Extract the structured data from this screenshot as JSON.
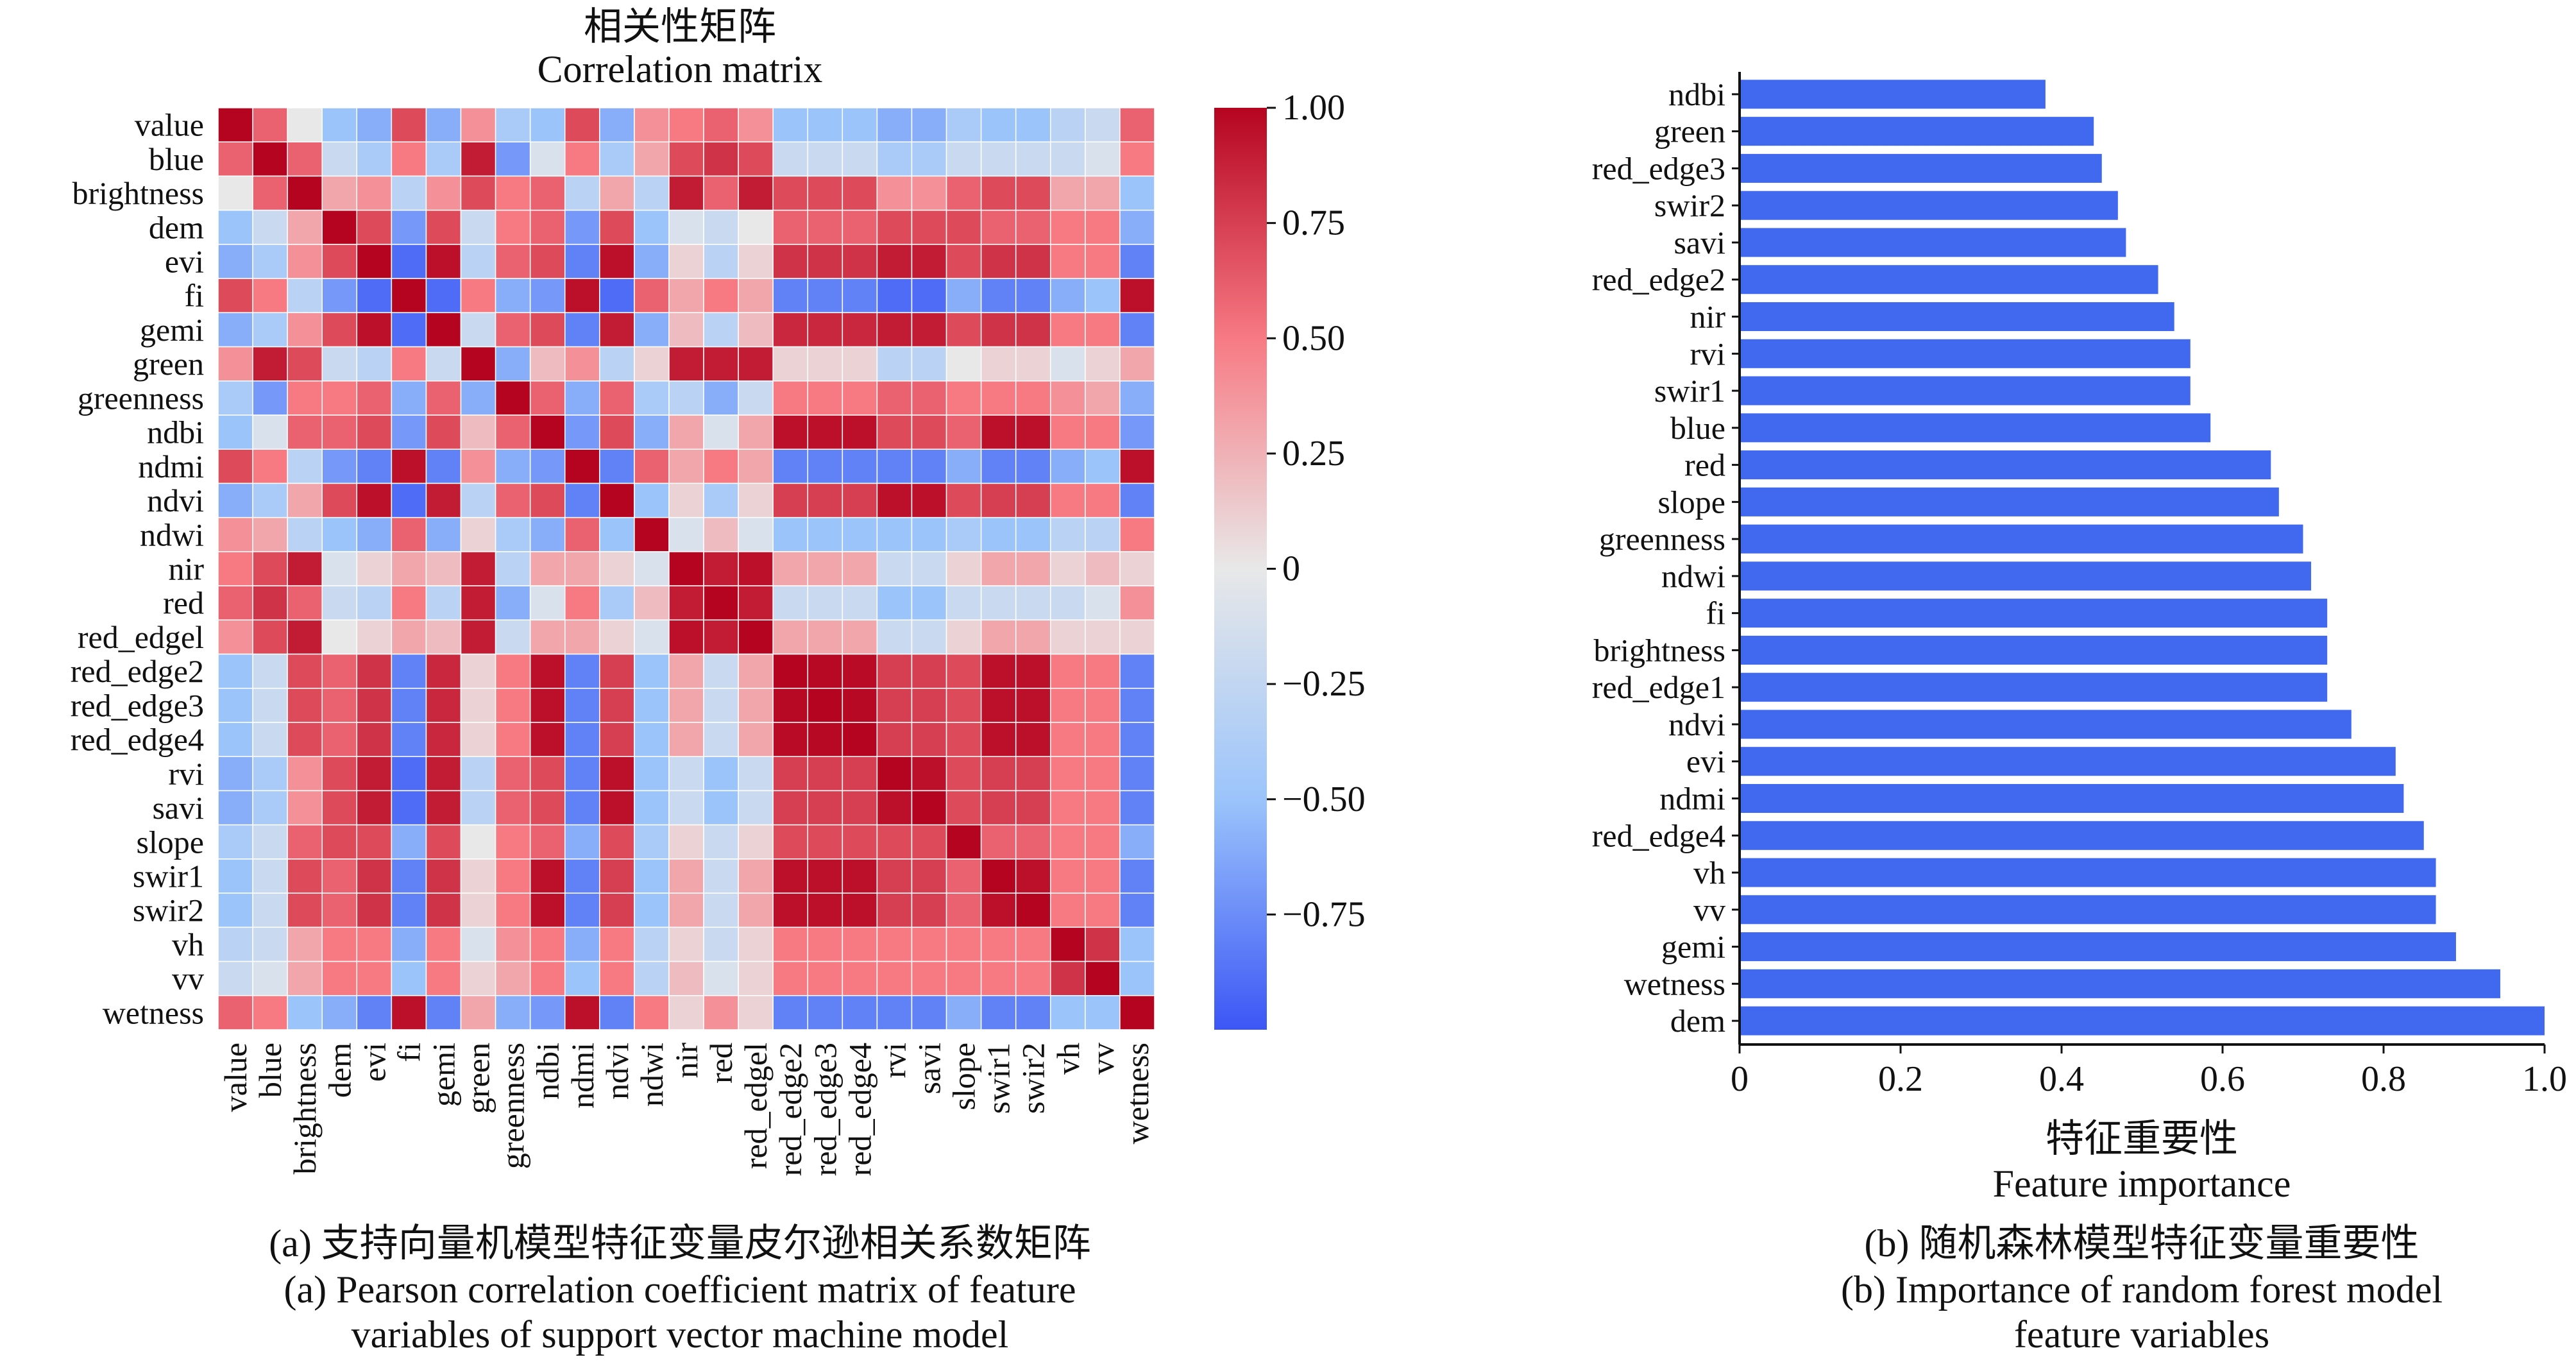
{
  "heatmap": {
    "title_zh": "相关性矩阵",
    "title_en": "Correlation matrix",
    "caption_zh": "(a) 支持向量机模型特征变量皮尔逊相关系数矩阵",
    "caption_en_1": "(a) Pearson correlation coefficient matrix of feature",
    "caption_en_2": "variables of support vector machine model",
    "colorbar": {
      "range": [
        -1,
        1
      ],
      "ticks": [
        1.0,
        0.75,
        0.5,
        0.25,
        0,
        -0.25,
        -0.5,
        -0.75
      ],
      "tick_labels": [
        "1.00",
        "0.75",
        "0.50",
        "0.25",
        "0",
        "−0.25",
        "−0.50",
        "−0.75"
      ],
      "colors": [
        "#3b56f5",
        "#9bc4fb",
        "#e8e8e8",
        "#f77a83",
        "#b50420"
      ]
    }
  },
  "chart_data": [
    {
      "type": "heatmap",
      "title": "相关性矩阵 Correlation matrix",
      "labels": [
        "value",
        "blue",
        "brightness",
        "dem",
        "evi",
        "fi",
        "gemi",
        "green",
        "greenness",
        "ndbi",
        "ndmi",
        "ndvi",
        "ndwi",
        "nir",
        "red",
        "red_edgel",
        "red_edge2",
        "red_edge3",
        "red_edge4",
        "rvi",
        "savi",
        "slope",
        "swir1",
        "swir2",
        "vh",
        "vv",
        "wetness"
      ],
      "vmin": -1,
      "vmax": 1,
      "values": [
        [
          1.0,
          0.6,
          0.0,
          -0.5,
          -0.6,
          0.7,
          -0.6,
          0.4,
          -0.4,
          -0.5,
          0.7,
          -0.6,
          0.4,
          0.5,
          0.6,
          0.4,
          -0.5,
          -0.5,
          -0.5,
          -0.6,
          -0.6,
          -0.4,
          -0.5,
          -0.5,
          -0.3,
          -0.2,
          0.6
        ],
        [
          0.6,
          1.0,
          0.6,
          -0.2,
          -0.4,
          0.5,
          -0.4,
          0.9,
          -0.7,
          -0.1,
          0.5,
          -0.4,
          0.3,
          0.7,
          0.8,
          0.7,
          -0.2,
          -0.2,
          -0.2,
          -0.4,
          -0.4,
          -0.2,
          -0.2,
          -0.2,
          -0.2,
          -0.1,
          0.5
        ],
        [
          0.0,
          0.6,
          1.0,
          0.3,
          0.4,
          -0.3,
          0.4,
          0.7,
          0.5,
          0.6,
          -0.3,
          0.3,
          -0.3,
          0.9,
          0.6,
          0.9,
          0.7,
          0.7,
          0.7,
          0.4,
          0.4,
          0.6,
          0.7,
          0.7,
          0.3,
          0.3,
          -0.5
        ],
        [
          -0.5,
          -0.2,
          0.3,
          1.0,
          0.7,
          -0.7,
          0.7,
          -0.2,
          0.5,
          0.6,
          -0.7,
          0.7,
          -0.5,
          -0.1,
          -0.2,
          0.0,
          0.6,
          0.6,
          0.6,
          0.7,
          0.7,
          0.7,
          0.6,
          0.6,
          0.5,
          0.5,
          -0.6
        ],
        [
          -0.6,
          -0.4,
          0.4,
          0.7,
          1.0,
          -0.9,
          0.95,
          -0.3,
          0.6,
          0.7,
          -0.8,
          0.95,
          -0.6,
          0.1,
          -0.3,
          0.1,
          0.8,
          0.8,
          0.8,
          0.9,
          0.9,
          0.7,
          0.8,
          0.8,
          0.5,
          0.5,
          -0.8
        ],
        [
          0.7,
          0.5,
          -0.3,
          -0.7,
          -0.9,
          1.0,
          -0.9,
          0.5,
          -0.6,
          -0.7,
          0.95,
          -0.9,
          0.6,
          0.3,
          0.5,
          0.3,
          -0.8,
          -0.8,
          -0.8,
          -0.9,
          -0.9,
          -0.6,
          -0.8,
          -0.8,
          -0.6,
          -0.5,
          0.95
        ],
        [
          -0.6,
          -0.4,
          0.4,
          0.7,
          0.95,
          -0.9,
          1.0,
          -0.2,
          0.6,
          0.7,
          -0.8,
          0.9,
          -0.6,
          0.2,
          -0.3,
          0.2,
          0.85,
          0.85,
          0.85,
          0.9,
          0.9,
          0.7,
          0.8,
          0.8,
          0.5,
          0.5,
          -0.8
        ],
        [
          0.4,
          0.9,
          0.7,
          -0.2,
          -0.3,
          0.5,
          -0.2,
          1.0,
          -0.6,
          0.2,
          0.4,
          -0.3,
          0.1,
          0.9,
          0.9,
          0.9,
          0.1,
          0.1,
          0.1,
          -0.3,
          -0.3,
          0.0,
          0.1,
          0.1,
          -0.1,
          0.1,
          0.3
        ],
        [
          -0.4,
          -0.7,
          0.5,
          0.5,
          0.6,
          -0.6,
          0.6,
          -0.6,
          1.0,
          0.6,
          -0.6,
          0.6,
          -0.4,
          -0.3,
          -0.6,
          -0.2,
          0.5,
          0.5,
          0.5,
          0.6,
          0.6,
          0.5,
          0.5,
          0.5,
          0.4,
          0.3,
          -0.6
        ],
        [
          -0.5,
          -0.1,
          0.6,
          0.6,
          0.7,
          -0.7,
          0.7,
          0.2,
          0.6,
          1.0,
          -0.7,
          0.7,
          -0.6,
          0.3,
          -0.1,
          0.3,
          0.95,
          0.95,
          0.95,
          0.7,
          0.7,
          0.6,
          0.95,
          0.95,
          0.5,
          0.5,
          -0.7
        ],
        [
          0.7,
          0.5,
          -0.3,
          -0.7,
          -0.8,
          0.95,
          -0.8,
          0.4,
          -0.6,
          -0.7,
          1.0,
          -0.8,
          0.6,
          0.3,
          0.5,
          0.3,
          -0.8,
          -0.8,
          -0.8,
          -0.8,
          -0.8,
          -0.6,
          -0.8,
          -0.8,
          -0.6,
          -0.5,
          0.95
        ],
        [
          -0.6,
          -0.4,
          0.3,
          0.7,
          0.95,
          -0.9,
          0.9,
          -0.3,
          0.6,
          0.7,
          -0.8,
          1.0,
          -0.5,
          0.1,
          -0.4,
          0.1,
          0.75,
          0.75,
          0.75,
          0.95,
          0.95,
          0.7,
          0.75,
          0.75,
          0.5,
          0.5,
          -0.8
        ],
        [
          0.4,
          0.3,
          -0.3,
          -0.5,
          -0.6,
          0.6,
          -0.6,
          0.1,
          -0.4,
          -0.6,
          0.6,
          -0.5,
          1.0,
          -0.1,
          0.2,
          -0.1,
          -0.5,
          -0.5,
          -0.5,
          -0.5,
          -0.5,
          -0.4,
          -0.5,
          -0.5,
          -0.3,
          -0.3,
          0.5
        ],
        [
          0.5,
          0.7,
          0.9,
          -0.1,
          0.1,
          0.3,
          0.2,
          0.9,
          -0.3,
          0.3,
          0.3,
          0.1,
          -0.1,
          1.0,
          0.9,
          0.95,
          0.3,
          0.3,
          0.3,
          -0.2,
          -0.2,
          0.1,
          0.3,
          0.3,
          0.1,
          0.2,
          0.1
        ],
        [
          0.6,
          0.8,
          0.6,
          -0.2,
          -0.3,
          0.5,
          -0.3,
          0.9,
          -0.6,
          -0.1,
          0.5,
          -0.4,
          0.2,
          0.9,
          1.0,
          0.9,
          -0.2,
          -0.2,
          -0.2,
          -0.5,
          -0.5,
          -0.2,
          -0.2,
          -0.2,
          -0.2,
          -0.1,
          0.4
        ],
        [
          0.4,
          0.7,
          0.9,
          0.0,
          0.1,
          0.3,
          0.2,
          0.9,
          -0.2,
          0.3,
          0.3,
          0.1,
          -0.1,
          0.95,
          0.9,
          1.0,
          0.3,
          0.3,
          0.3,
          -0.2,
          -0.2,
          0.1,
          0.3,
          0.3,
          0.1,
          0.1,
          0.1
        ],
        [
          -0.5,
          -0.2,
          0.7,
          0.6,
          0.8,
          -0.8,
          0.85,
          0.1,
          0.5,
          0.95,
          -0.8,
          0.75,
          -0.5,
          0.3,
          -0.2,
          0.3,
          1.0,
          0.98,
          0.97,
          0.75,
          0.75,
          0.7,
          0.95,
          0.95,
          0.5,
          0.5,
          -0.8
        ],
        [
          -0.5,
          -0.2,
          0.7,
          0.6,
          0.8,
          -0.8,
          0.85,
          0.1,
          0.5,
          0.95,
          -0.8,
          0.75,
          -0.5,
          0.3,
          -0.2,
          0.3,
          0.98,
          1.0,
          0.98,
          0.75,
          0.75,
          0.7,
          0.95,
          0.95,
          0.5,
          0.5,
          -0.8
        ],
        [
          -0.5,
          -0.2,
          0.7,
          0.6,
          0.8,
          -0.8,
          0.85,
          0.1,
          0.5,
          0.95,
          -0.8,
          0.75,
          -0.5,
          0.3,
          -0.2,
          0.3,
          0.97,
          0.98,
          1.0,
          0.75,
          0.75,
          0.7,
          0.95,
          0.95,
          0.5,
          0.5,
          -0.8
        ],
        [
          -0.6,
          -0.4,
          0.4,
          0.7,
          0.9,
          -0.9,
          0.9,
          -0.3,
          0.6,
          0.7,
          -0.8,
          0.95,
          -0.5,
          -0.2,
          -0.5,
          -0.2,
          0.75,
          0.75,
          0.75,
          1.0,
          0.95,
          0.7,
          0.75,
          0.75,
          0.5,
          0.5,
          -0.8
        ],
        [
          -0.6,
          -0.4,
          0.4,
          0.7,
          0.9,
          -0.9,
          0.9,
          -0.3,
          0.6,
          0.7,
          -0.8,
          0.95,
          -0.5,
          -0.2,
          -0.5,
          -0.2,
          0.75,
          0.75,
          0.75,
          0.95,
          1.0,
          0.7,
          0.75,
          0.75,
          0.5,
          0.5,
          -0.8
        ],
        [
          -0.4,
          -0.2,
          0.6,
          0.7,
          0.7,
          -0.6,
          0.7,
          0.0,
          0.5,
          0.6,
          -0.6,
          0.7,
          -0.4,
          0.1,
          -0.2,
          0.1,
          0.7,
          0.7,
          0.7,
          0.7,
          0.7,
          1.0,
          0.6,
          0.6,
          0.5,
          0.5,
          -0.6
        ],
        [
          -0.5,
          -0.2,
          0.7,
          0.6,
          0.8,
          -0.8,
          0.8,
          0.1,
          0.5,
          0.95,
          -0.8,
          0.75,
          -0.5,
          0.3,
          -0.2,
          0.3,
          0.95,
          0.95,
          0.95,
          0.75,
          0.75,
          0.6,
          1.0,
          0.95,
          0.5,
          0.5,
          -0.8
        ],
        [
          -0.5,
          -0.2,
          0.7,
          0.6,
          0.8,
          -0.8,
          0.8,
          0.1,
          0.5,
          0.95,
          -0.8,
          0.75,
          -0.5,
          0.3,
          -0.2,
          0.3,
          0.95,
          0.95,
          0.95,
          0.75,
          0.75,
          0.6,
          0.95,
          1.0,
          0.5,
          0.5,
          -0.8
        ],
        [
          -0.3,
          -0.2,
          0.3,
          0.5,
          0.5,
          -0.6,
          0.5,
          -0.1,
          0.4,
          0.5,
          -0.6,
          0.5,
          -0.3,
          0.1,
          -0.2,
          0.1,
          0.5,
          0.5,
          0.5,
          0.5,
          0.5,
          0.5,
          0.5,
          0.5,
          1.0,
          0.8,
          -0.5
        ],
        [
          -0.2,
          -0.1,
          0.3,
          0.5,
          0.5,
          -0.5,
          0.5,
          0.1,
          0.3,
          0.5,
          -0.5,
          0.5,
          -0.3,
          0.2,
          -0.1,
          0.1,
          0.5,
          0.5,
          0.5,
          0.5,
          0.5,
          0.5,
          0.5,
          0.5,
          0.8,
          1.0,
          -0.5
        ],
        [
          0.6,
          0.5,
          -0.5,
          -0.6,
          -0.8,
          0.95,
          -0.8,
          0.3,
          -0.6,
          -0.7,
          0.95,
          -0.8,
          0.5,
          0.1,
          0.4,
          0.1,
          -0.8,
          -0.8,
          -0.8,
          -0.8,
          -0.8,
          -0.6,
          -0.8,
          -0.8,
          -0.5,
          -0.5,
          1.0
        ]
      ]
    },
    {
      "type": "bar",
      "orientation": "horizontal",
      "categories": [
        "ndbi",
        "green",
        "red_edge3",
        "swir2",
        "savi",
        "red_edge2",
        "nir",
        "rvi",
        "swir1",
        "blue",
        "red",
        "slope",
        "greenness",
        "ndwi",
        "fi",
        "brightness",
        "red_edge1",
        "ndvi",
        "evi",
        "ndmi",
        "red_edge4",
        "vh",
        "vv",
        "gemi",
        "wetness",
        "dem"
      ],
      "values": [
        0.38,
        0.44,
        0.45,
        0.47,
        0.48,
        0.52,
        0.54,
        0.56,
        0.56,
        0.585,
        0.66,
        0.67,
        0.7,
        0.71,
        0.73,
        0.73,
        0.73,
        0.76,
        0.815,
        0.825,
        0.85,
        0.865,
        0.865,
        0.89,
        0.945,
        1.0
      ],
      "xlim": [
        0,
        1.0
      ],
      "xticks": [
        0,
        0.2,
        0.4,
        0.6,
        0.8,
        1.0
      ],
      "xtick_labels": [
        "0",
        "0.2",
        "0.4",
        "0.6",
        "0.8",
        "1.0"
      ],
      "xlabel_zh": "特征重要性",
      "xlabel": "Feature importance",
      "bar_color": "#4169f0",
      "caption_zh": "(b) 随机森林模型特征变量重要性",
      "caption_en_1": "(b) Importance of random forest model",
      "caption_en_2": "feature variables"
    }
  ]
}
